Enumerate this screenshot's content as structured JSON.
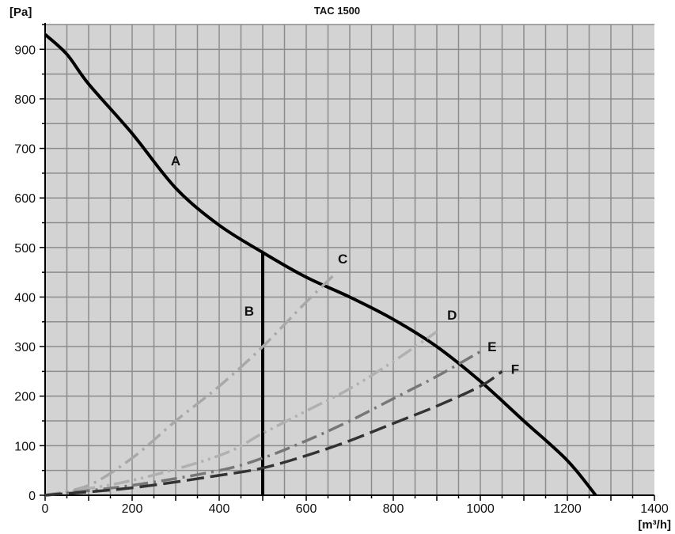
{
  "chart_data": {
    "type": "line",
    "title": "TAC 1500",
    "xlabel": "[m³/h]",
    "ylabel": "[Pa]",
    "xlim": [
      0,
      1400
    ],
    "ylim": [
      0,
      950
    ],
    "xticks": [
      0,
      200,
      400,
      600,
      800,
      1000,
      1200,
      1400
    ],
    "yticks": [
      0,
      100,
      200,
      300,
      400,
      500,
      600,
      700,
      800,
      900
    ],
    "grid": true,
    "grid_step": {
      "x": 50,
      "y": 50
    },
    "colors": {
      "background": "#d3d3d3",
      "grid": "#8c8c8c"
    },
    "series": [
      {
        "name": "A",
        "color": "#000000",
        "style": "solid",
        "label_at": [
          300,
          675
        ],
        "points": [
          [
            0,
            930
          ],
          [
            50,
            890
          ],
          [
            100,
            830
          ],
          [
            200,
            730
          ],
          [
            300,
            620
          ],
          [
            400,
            545
          ],
          [
            500,
            490
          ],
          [
            600,
            440
          ],
          [
            700,
            400
          ],
          [
            800,
            355
          ],
          [
            900,
            300
          ],
          [
            1000,
            230
          ],
          [
            1100,
            150
          ],
          [
            1200,
            70
          ],
          [
            1265,
            0
          ]
        ]
      },
      {
        "name": "B",
        "color": "#000000",
        "style": "solid",
        "label_at": [
          469,
          372
        ],
        "points": [
          [
            500,
            0
          ],
          [
            500,
            490
          ]
        ]
      },
      {
        "name": "C",
        "color": "#a8a8a8",
        "style": "dash-dot",
        "label_at": [
          684,
          477
        ],
        "points": [
          [
            0,
            0
          ],
          [
            100,
            20
          ],
          [
            200,
            75
          ],
          [
            300,
            150
          ],
          [
            400,
            220
          ],
          [
            500,
            300
          ],
          [
            600,
            390
          ],
          [
            670,
            450
          ]
        ]
      },
      {
        "name": "D",
        "color": "#b0b0b0",
        "style": "dash-dot-dot",
        "label_at": [
          935,
          364
        ],
        "points": [
          [
            0,
            0
          ],
          [
            200,
            30
          ],
          [
            400,
            80
          ],
          [
            500,
            125
          ],
          [
            600,
            170
          ],
          [
            700,
            215
          ],
          [
            800,
            270
          ],
          [
            900,
            330
          ]
        ]
      },
      {
        "name": "E",
        "color": "#777777",
        "style": "dash-dot",
        "label_at": [
          1027,
          300
        ],
        "points": [
          [
            0,
            0
          ],
          [
            200,
            20
          ],
          [
            400,
            50
          ],
          [
            500,
            75
          ],
          [
            600,
            110
          ],
          [
            700,
            150
          ],
          [
            800,
            195
          ],
          [
            900,
            240
          ],
          [
            1000,
            290
          ]
        ]
      },
      {
        "name": "F",
        "color": "#333333",
        "style": "dashed",
        "label_at": [
          1080,
          255
        ],
        "points": [
          [
            0,
            0
          ],
          [
            200,
            15
          ],
          [
            400,
            40
          ],
          [
            500,
            55
          ],
          [
            600,
            80
          ],
          [
            700,
            110
          ],
          [
            800,
            145
          ],
          [
            900,
            180
          ],
          [
            1000,
            220
          ],
          [
            1050,
            250
          ]
        ]
      }
    ]
  }
}
